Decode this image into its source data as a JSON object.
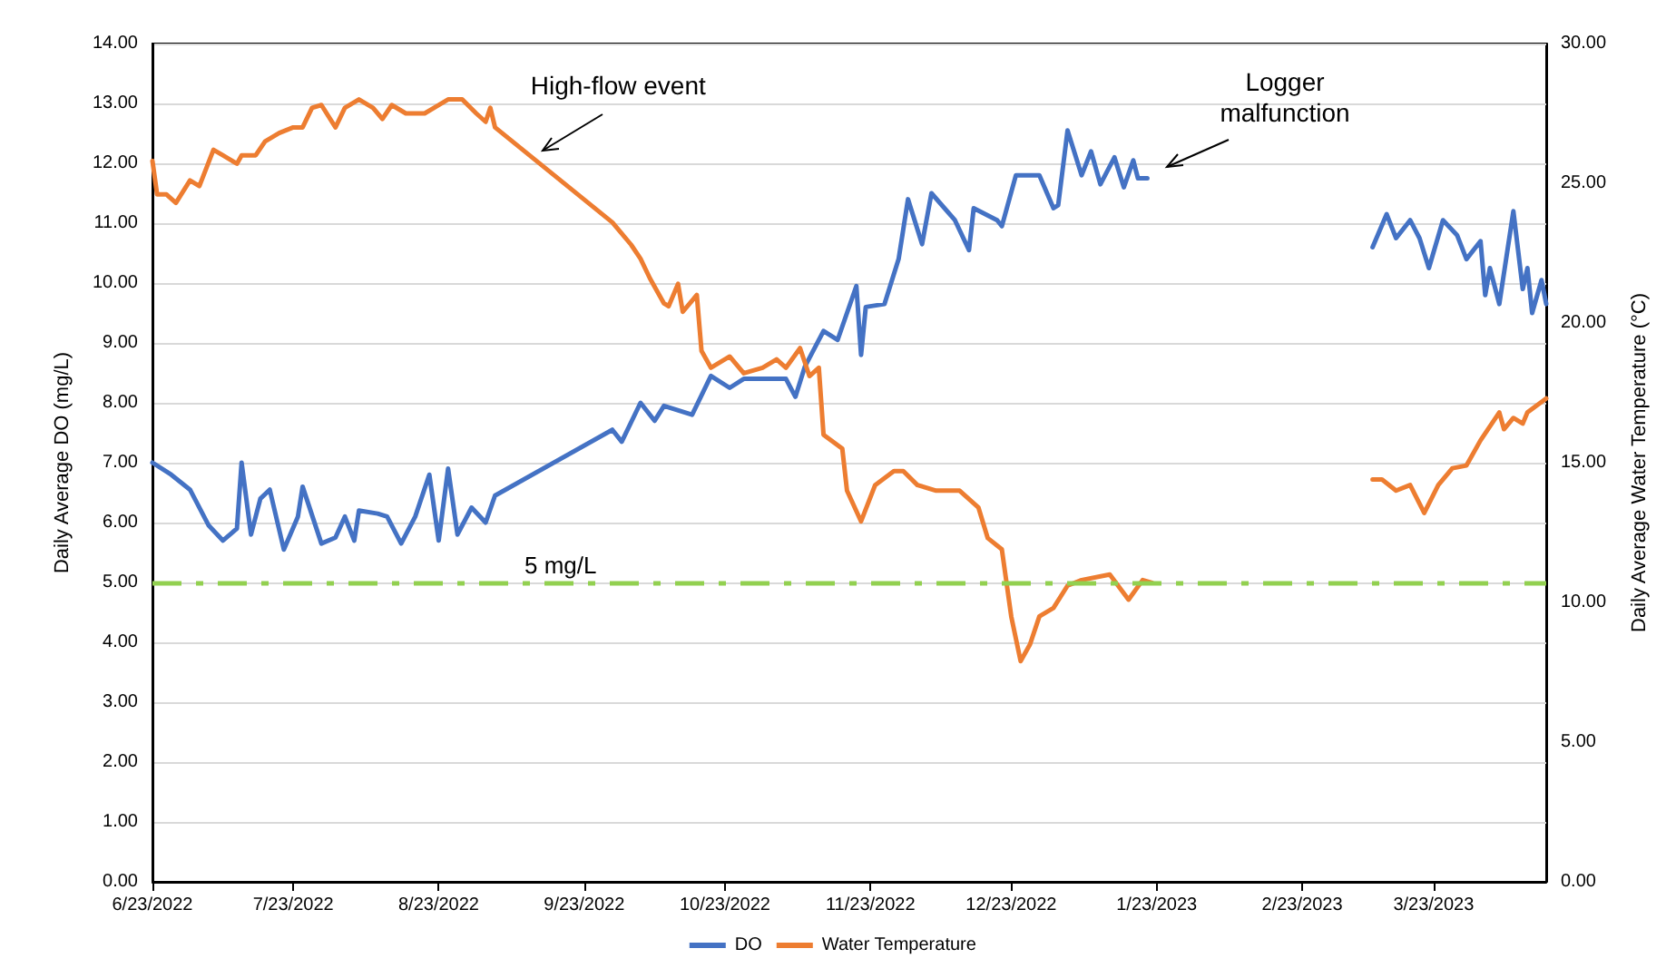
{
  "chart_data": {
    "type": "line",
    "xlabel": null,
    "ylabel": "Daily Average DO (mg/L)",
    "y2label": "Daily Average Water Temperature (°C)",
    "xlim": [
      "2022-06-23",
      "2023-04-16"
    ],
    "xticks": [
      {
        "value": "2022-06-23",
        "label": "6/23/2022"
      },
      {
        "value": "2022-07-23",
        "label": "7/23/2022"
      },
      {
        "value": "2022-08-23",
        "label": "8/23/2022"
      },
      {
        "value": "2022-09-23",
        "label": "9/23/2022"
      },
      {
        "value": "2022-10-23",
        "label": "10/23/2022"
      },
      {
        "value": "2022-11-23",
        "label": "11/23/2022"
      },
      {
        "value": "2022-12-23",
        "label": "12/23/2022"
      },
      {
        "value": "2023-01-23",
        "label": "1/23/2023"
      },
      {
        "value": "2023-02-23",
        "label": "2/23/2023"
      },
      {
        "value": "2023-03-23",
        "label": "3/23/2023"
      }
    ],
    "ylim": [
      0,
      14
    ],
    "yticks": [
      {
        "value": 0,
        "label": "0.00"
      },
      {
        "value": 1,
        "label": "1.00"
      },
      {
        "value": 2,
        "label": "2.00"
      },
      {
        "value": 3,
        "label": "3.00"
      },
      {
        "value": 4,
        "label": "4.00"
      },
      {
        "value": 5,
        "label": "5.00"
      },
      {
        "value": 6,
        "label": "6.00"
      },
      {
        "value": 7,
        "label": "7.00"
      },
      {
        "value": 8,
        "label": "8.00"
      },
      {
        "value": 9,
        "label": "9.00"
      },
      {
        "value": 10,
        "label": "10.00"
      },
      {
        "value": 11,
        "label": "11.00"
      },
      {
        "value": 12,
        "label": "12.00"
      },
      {
        "value": 13,
        "label": "13.00"
      },
      {
        "value": 14,
        "label": "14.00"
      }
    ],
    "y2lim": [
      0,
      30
    ],
    "y2ticks": [
      {
        "value": 0,
        "label": "0.00"
      },
      {
        "value": 5,
        "label": "5.00"
      },
      {
        "value": 10,
        "label": "10.00"
      },
      {
        "value": 15,
        "label": "15.00"
      },
      {
        "value": 20,
        "label": "20.00"
      },
      {
        "value": 25,
        "label": "25.00"
      },
      {
        "value": 30,
        "label": "30.00"
      }
    ],
    "grid": "y",
    "legend": "bottom",
    "marker": "none",
    "line_style": "solid",
    "series": [
      {
        "name": "DO",
        "color": "#4472c4",
        "x": [
          "2022-06-23",
          "2022-06-27",
          "2022-07-01",
          "2022-07-05",
          "2022-07-08",
          "2022-07-11",
          "2022-07-12",
          "2022-07-14",
          "2022-07-16",
          "2022-07-18",
          "2022-07-21",
          "2022-07-24",
          "2022-07-25",
          "2022-07-29",
          "2022-08-01",
          "2022-08-03",
          "2022-08-05",
          "2022-08-06",
          "2022-08-10",
          "2022-08-12",
          "2022-08-15",
          "2022-08-18",
          "2022-08-21",
          "2022-08-23",
          "2022-08-25",
          "2022-08-27",
          "2022-08-30",
          "2022-09-02",
          "2022-09-04",
          "2022-09-29",
          "2022-10-01",
          "2022-10-05",
          "2022-10-08",
          "2022-10-10",
          "2022-10-16",
          "2022-10-20",
          "2022-10-24",
          "2022-10-27",
          "2022-10-31",
          "2022-11-05",
          "2022-11-07",
          "2022-11-09",
          "2022-11-13",
          "2022-11-16",
          "2022-11-20",
          "2022-11-21",
          "2022-11-22",
          "2022-11-26",
          "2022-11-29",
          "2022-12-01",
          "2022-12-04",
          "2022-12-06",
          "2022-12-11",
          "2022-12-14",
          "2022-12-15",
          "2022-12-20",
          "2022-12-21",
          "2022-12-24",
          "2022-12-29",
          "2023-01-01",
          "2023-01-02",
          "2023-01-04",
          "2023-01-07",
          "2023-01-09",
          "2023-01-11",
          "2023-01-14",
          "2023-01-16",
          "2023-01-18",
          "2023-01-19",
          "2023-01-21",
          "2023-02-15",
          "2023-03-10",
          "2023-03-13",
          "2023-03-15",
          "2023-03-18",
          "2023-03-20",
          "2023-03-22",
          "2023-03-25",
          "2023-03-28",
          "2023-03-30",
          "2023-04-02",
          "2023-04-03",
          "2023-04-04",
          "2023-04-06",
          "2023-04-09",
          "2023-04-11",
          "2023-04-12",
          "2023-04-13",
          "2023-04-15",
          "2023-04-16"
        ],
        "values": [
          7.0,
          6.8,
          6.55,
          5.95,
          5.7,
          5.9,
          7.0,
          5.8,
          6.4,
          6.55,
          5.55,
          6.1,
          6.6,
          5.65,
          5.75,
          6.1,
          5.7,
          6.2,
          6.15,
          6.1,
          5.65,
          6.1,
          6.8,
          5.7,
          6.9,
          5.8,
          6.25,
          6.0,
          6.45,
          7.55,
          7.35,
          8.0,
          7.7,
          7.95,
          7.8,
          8.45,
          8.25,
          8.4,
          8.4,
          8.4,
          8.1,
          8.6,
          9.2,
          9.05,
          9.95,
          8.8,
          9.6,
          9.65,
          10.4,
          11.4,
          10.65,
          11.5,
          11.05,
          10.55,
          11.25,
          11.05,
          10.95,
          11.8,
          11.8,
          11.25,
          11.3,
          12.55,
          11.8,
          12.2,
          11.65,
          12.1,
          11.6,
          12.05,
          11.75,
          11.75,
          null,
          10.6,
          11.15,
          10.75,
          11.05,
          10.75,
          10.25,
          11.05,
          10.8,
          10.4,
          10.7,
          9.8,
          10.25,
          9.65,
          11.2,
          9.9,
          10.25,
          9.5,
          10.05,
          9.65
        ]
      },
      {
        "name": "Water Temperature",
        "color": "#ed7d31",
        "axis": "y2",
        "x": [
          "2022-06-23",
          "2022-06-24",
          "2022-06-26",
          "2022-06-28",
          "2022-07-01",
          "2022-07-03",
          "2022-07-06",
          "2022-07-08",
          "2022-07-11",
          "2022-07-12",
          "2022-07-15",
          "2022-07-17",
          "2022-07-20",
          "2022-07-23",
          "2022-07-25",
          "2022-07-27",
          "2022-07-29",
          "2022-08-01",
          "2022-08-03",
          "2022-08-06",
          "2022-08-09",
          "2022-08-11",
          "2022-08-13",
          "2022-08-16",
          "2022-08-20",
          "2022-08-22",
          "2022-08-25",
          "2022-08-28",
          "2022-08-31",
          "2022-09-02",
          "2022-09-03",
          "2022-09-04",
          "2022-09-29",
          "2022-10-03",
          "2022-10-05",
          "2022-10-07",
          "2022-10-10",
          "2022-10-11",
          "2022-10-13",
          "2022-10-14",
          "2022-10-17",
          "2022-10-18",
          "2022-10-20",
          "2022-10-24",
          "2022-10-27",
          "2022-10-31",
          "2022-11-03",
          "2022-11-05",
          "2022-11-08",
          "2022-11-10",
          "2022-11-12",
          "2022-11-13",
          "2022-11-17",
          "2022-11-18",
          "2022-11-21",
          "2022-11-24",
          "2022-11-28",
          "2022-11-30",
          "2022-12-03",
          "2022-12-07",
          "2022-12-12",
          "2022-12-16",
          "2022-12-18",
          "2022-12-21",
          "2022-12-23",
          "2022-12-25",
          "2022-12-27",
          "2022-12-29",
          "2023-01-01",
          "2023-01-04",
          "2023-01-07",
          "2023-01-13",
          "2023-01-17",
          "2023-01-20",
          "2023-01-22",
          "2023-02-15",
          "2023-03-10",
          "2023-03-12",
          "2023-03-15",
          "2023-03-18",
          "2023-03-21",
          "2023-03-24",
          "2023-03-27",
          "2023-03-30",
          "2023-04-02",
          "2023-04-06",
          "2023-04-07",
          "2023-04-09",
          "2023-04-11",
          "2023-04-12",
          "2023-04-16"
        ],
        "values": [
          25.8,
          24.6,
          24.6,
          24.3,
          25.1,
          24.9,
          26.2,
          26.0,
          25.7,
          26.0,
          26.0,
          26.5,
          26.8,
          27.0,
          27.0,
          27.7,
          27.8,
          27.0,
          27.7,
          28.0,
          27.7,
          27.3,
          27.8,
          27.5,
          27.5,
          27.7,
          28.0,
          28.0,
          27.5,
          27.2,
          27.7,
          27.0,
          23.6,
          22.8,
          22.3,
          21.6,
          20.7,
          20.6,
          21.4,
          20.4,
          21.0,
          19.0,
          18.4,
          18.8,
          18.2,
          18.4,
          18.7,
          18.4,
          19.1,
          18.1,
          18.4,
          16.0,
          15.5,
          14.0,
          12.9,
          14.2,
          14.7,
          14.7,
          14.2,
          14.0,
          14.0,
          13.4,
          12.3,
          11.9,
          9.5,
          7.9,
          8.5,
          9.5,
          9.8,
          10.6,
          10.8,
          11.0,
          10.1,
          10.8,
          10.7,
          null,
          14.4,
          14.4,
          14.0,
          14.2,
          13.2,
          14.2,
          14.8,
          14.9,
          15.8,
          16.8,
          16.2,
          16.6,
          16.4,
          16.8,
          17.3
        ]
      }
    ],
    "ref_lines": [
      {
        "axis": "y",
        "value": 5,
        "label": "5 mg/L",
        "color": "#92d050",
        "line_style": "dashed"
      }
    ],
    "annotations": [
      {
        "text": "High-flow event",
        "x": "2022-09-14",
        "y": 12.2
      },
      "Logger malfunction"
    ]
  }
}
